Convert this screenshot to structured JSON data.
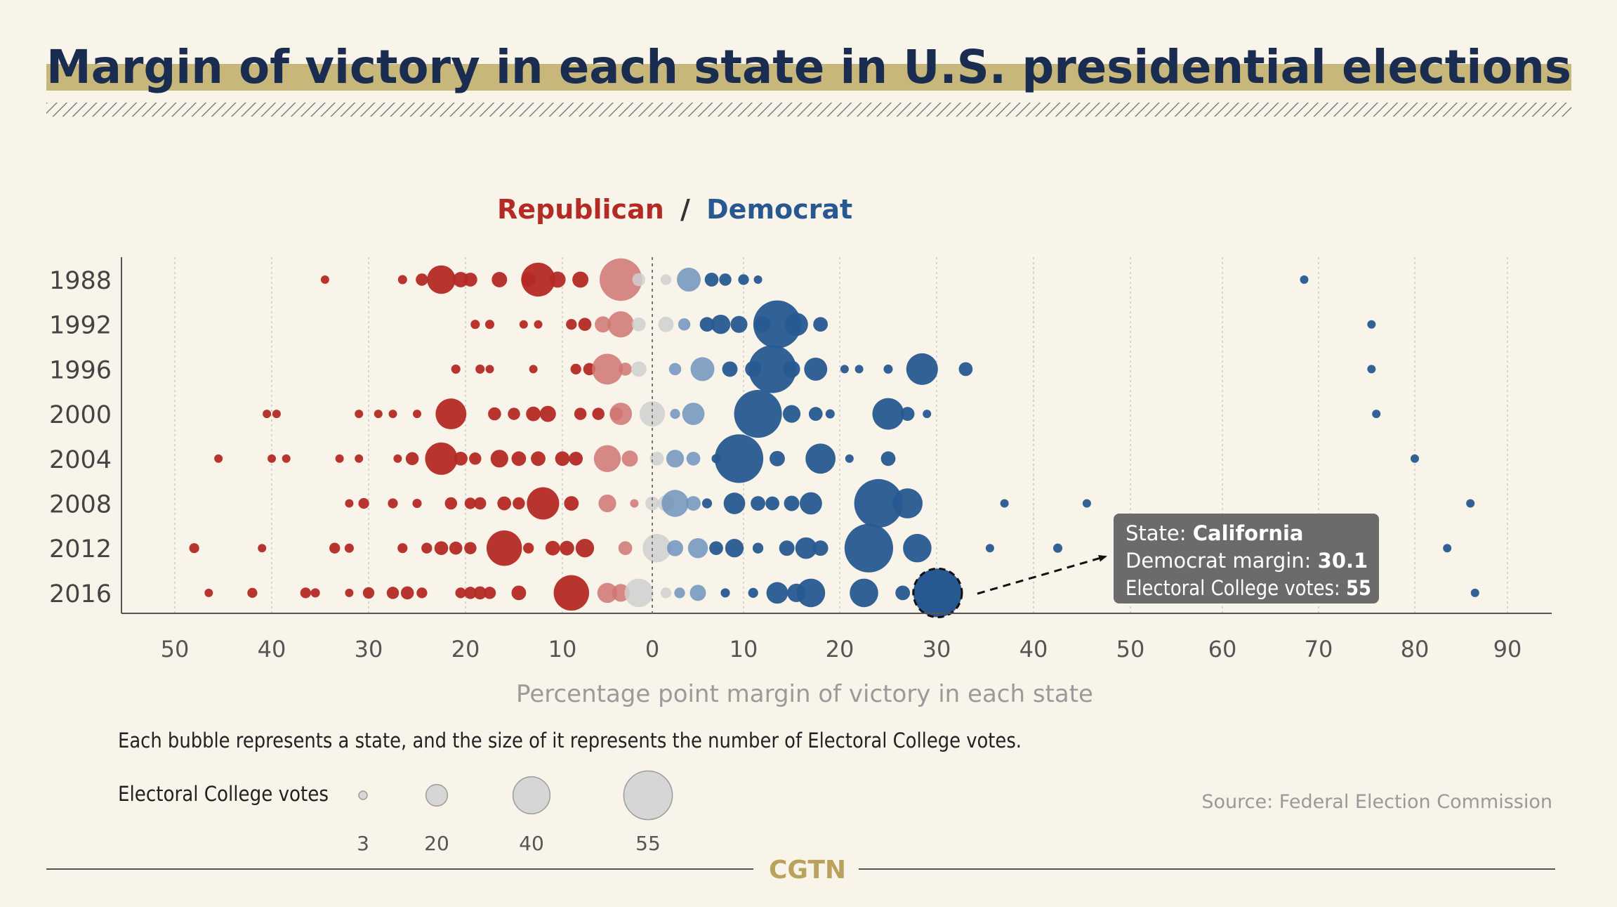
{
  "header": {
    "title": "Margin of victory in each state in U.S. presidential elections"
  },
  "legend_top": {
    "republican": "Republican",
    "separator": "/",
    "democrat": "Democrat"
  },
  "tooltip": {
    "state_label": "State: ",
    "state_value": "California",
    "margin_label": "Democrat margin: ",
    "margin_value": "30.1",
    "votes_label": "Electoral College votes: ",
    "votes_value": "55"
  },
  "note": "Each bubble represents a state, and the size of it represents the number of Electoral College votes.",
  "size_legend": {
    "title": "Electoral College votes",
    "items": [
      {
        "label": "3",
        "value": 3
      },
      {
        "label": "20",
        "value": 20
      },
      {
        "label": "40",
        "value": 40
      },
      {
        "label": "55",
        "value": 55
      }
    ]
  },
  "source": "Source: Federal Election Commission",
  "brand": "CGTN",
  "colors": {
    "background": "#f8f4ea",
    "title": "#1a2d50",
    "title_highlight": "#c8b77a",
    "republican": "#b42a25",
    "democrat": "#275891",
    "neutral": "#cfcfcf",
    "tooltip_bg": "#6b6b6b",
    "axis": "#666666",
    "brand": "#b9a25e"
  },
  "chart_data": {
    "type": "scatter",
    "xlabel": "Percentage point margin of victory in each state",
    "xlim": [
      -55,
      95
    ],
    "x_ticks": [
      {
        "value": -50,
        "label": "50"
      },
      {
        "value": -40,
        "label": "40"
      },
      {
        "value": -30,
        "label": "30"
      },
      {
        "value": -20,
        "label": "20"
      },
      {
        "value": -10,
        "label": "10"
      },
      {
        "value": 0,
        "label": "0"
      },
      {
        "value": 10,
        "label": "10"
      },
      {
        "value": 20,
        "label": "20"
      },
      {
        "value": 30,
        "label": "30"
      },
      {
        "value": 40,
        "label": "40"
      },
      {
        "value": 50,
        "label": "50"
      },
      {
        "value": 60,
        "label": "60"
      },
      {
        "value": 70,
        "label": "70"
      },
      {
        "value": 80,
        "label": "80"
      },
      {
        "value": 90,
        "label": "90"
      }
    ],
    "highlight": {
      "year": "2016",
      "margin": 30.1,
      "votes": 55
    },
    "years": [
      {
        "year": "1988",
        "states": [
          {
            "m": -34.5,
            "v": 3
          },
          {
            "m": -26.5,
            "v": 4
          },
          {
            "m": -24.5,
            "v": 8
          },
          {
            "m": -22.5,
            "v": 29
          },
          {
            "m": -20.5,
            "v": 12
          },
          {
            "m": -19.5,
            "v": 10
          },
          {
            "m": -16.5,
            "v": 12
          },
          {
            "m": -13.5,
            "v": 11
          },
          {
            "m": -12.5,
            "v": 36
          },
          {
            "m": -10.5,
            "v": 13
          },
          {
            "m": -8,
            "v": 13
          },
          {
            "m": -3.5,
            "v": 47
          },
          {
            "m": -1.5,
            "v": 9
          },
          {
            "m": 1.5,
            "v": 6
          },
          {
            "m": 4,
            "v": 23
          },
          {
            "m": 6.5,
            "v": 10
          },
          {
            "m": 8,
            "v": 8
          },
          {
            "m": 10,
            "v": 6
          },
          {
            "m": 11.5,
            "v": 3
          },
          {
            "m": 68.5,
            "v": 3
          }
        ]
      },
      {
        "year": "1992",
        "states": [
          {
            "m": -19,
            "v": 4
          },
          {
            "m": -17.5,
            "v": 4
          },
          {
            "m": -14,
            "v": 3
          },
          {
            "m": -12.5,
            "v": 3
          },
          {
            "m": -9,
            "v": 6
          },
          {
            "m": -7.5,
            "v": 9
          },
          {
            "m": -5.5,
            "v": 13
          },
          {
            "m": -3.5,
            "v": 26
          },
          {
            "m": -1.5,
            "v": 10
          },
          {
            "m": 1.5,
            "v": 12
          },
          {
            "m": 3.5,
            "v": 8
          },
          {
            "m": 6,
            "v": 11
          },
          {
            "m": 7.5,
            "v": 17
          },
          {
            "m": 9.5,
            "v": 14
          },
          {
            "m": 12,
            "v": 13
          },
          {
            "m": 13.5,
            "v": 54
          },
          {
            "m": 15.5,
            "v": 22
          },
          {
            "m": 18,
            "v": 11
          },
          {
            "m": 75.5,
            "v": 3
          }
        ]
      },
      {
        "year": "1996",
        "states": [
          {
            "m": -21,
            "v": 4
          },
          {
            "m": -18.5,
            "v": 4
          },
          {
            "m": -17.5,
            "v": 3
          },
          {
            "m": -13,
            "v": 3
          },
          {
            "m": -8.5,
            "v": 6
          },
          {
            "m": -7,
            "v": 8
          },
          {
            "m": -5,
            "v": 32
          },
          {
            "m": -3,
            "v": 9
          },
          {
            "m": -1.5,
            "v": 12
          },
          {
            "m": 2.5,
            "v": 8
          },
          {
            "m": 5.5,
            "v": 23
          },
          {
            "m": 8.5,
            "v": 12
          },
          {
            "m": 11,
            "v": 13
          },
          {
            "m": 13,
            "v": 54
          },
          {
            "m": 15,
            "v": 14
          },
          {
            "m": 17.5,
            "v": 22
          },
          {
            "m": 20.5,
            "v": 3
          },
          {
            "m": 22,
            "v": 3
          },
          {
            "m": 25,
            "v": 4
          },
          {
            "m": 28.5,
            "v": 33
          },
          {
            "m": 33,
            "v": 10
          },
          {
            "m": 75.5,
            "v": 3
          }
        ]
      },
      {
        "year": "2000",
        "states": [
          {
            "m": -40.5,
            "v": 3
          },
          {
            "m": -39.5,
            "v": 3
          },
          {
            "m": -31,
            "v": 3
          },
          {
            "m": -29,
            "v": 3
          },
          {
            "m": -27.5,
            "v": 3
          },
          {
            "m": -25,
            "v": 3
          },
          {
            "m": -21.5,
            "v": 32
          },
          {
            "m": -17,
            "v": 9
          },
          {
            "m": -15,
            "v": 8
          },
          {
            "m": -13,
            "v": 11
          },
          {
            "m": -11.5,
            "v": 13
          },
          {
            "m": -8,
            "v": 8
          },
          {
            "m": -6,
            "v": 8
          },
          {
            "m": -4,
            "v": 9
          },
          {
            "m": -3.5,
            "v": 21
          },
          {
            "m": 0,
            "v": 25
          },
          {
            "m": 2.5,
            "v": 5
          },
          {
            "m": 4.5,
            "v": 21
          },
          {
            "m": 11.5,
            "v": 54
          },
          {
            "m": 15,
            "v": 15
          },
          {
            "m": 17.5,
            "v": 10
          },
          {
            "m": 19,
            "v": 4
          },
          {
            "m": 25,
            "v": 33
          },
          {
            "m": 27,
            "v": 10
          },
          {
            "m": 29,
            "v": 3
          },
          {
            "m": 76,
            "v": 3
          }
        ]
      },
      {
        "year": "2004",
        "states": [
          {
            "m": -45.5,
            "v": 3
          },
          {
            "m": -40,
            "v": 3
          },
          {
            "m": -38.5,
            "v": 3
          },
          {
            "m": -33,
            "v": 3
          },
          {
            "m": -31,
            "v": 3
          },
          {
            "m": -27,
            "v": 3
          },
          {
            "m": -25.5,
            "v": 9
          },
          {
            "m": -22.5,
            "v": 34
          },
          {
            "m": -20.5,
            "v": 10
          },
          {
            "m": -19,
            "v": 8
          },
          {
            "m": -16.5,
            "v": 15
          },
          {
            "m": -14.5,
            "v": 11
          },
          {
            "m": -12.5,
            "v": 11
          },
          {
            "m": -10,
            "v": 11
          },
          {
            "m": -8.5,
            "v": 10
          },
          {
            "m": -5,
            "v": 27
          },
          {
            "m": -2.5,
            "v": 13
          },
          {
            "m": 0.5,
            "v": 10
          },
          {
            "m": 2.5,
            "v": 15
          },
          {
            "m": 4.5,
            "v": 10
          },
          {
            "m": 7,
            "v": 4
          },
          {
            "m": 9.5,
            "v": 55
          },
          {
            "m": 13.5,
            "v": 12
          },
          {
            "m": 18,
            "v": 31
          },
          {
            "m": 21,
            "v": 3
          },
          {
            "m": 25,
            "v": 11
          },
          {
            "m": 80,
            "v": 3
          }
        ]
      },
      {
        "year": "2008",
        "states": [
          {
            "m": -32,
            "v": 3
          },
          {
            "m": -30.5,
            "v": 6
          },
          {
            "m": -27.5,
            "v": 5
          },
          {
            "m": -25,
            "v": 4
          },
          {
            "m": -21.5,
            "v": 8
          },
          {
            "m": -19.5,
            "v": 7
          },
          {
            "m": -18.5,
            "v": 8
          },
          {
            "m": -16,
            "v": 10
          },
          {
            "m": -14.5,
            "v": 8
          },
          {
            "m": -12,
            "v": 34
          },
          {
            "m": -9,
            "v": 11
          },
          {
            "m": -5,
            "v": 15
          },
          {
            "m": -2,
            "v": 3
          },
          {
            "m": 0,
            "v": 10
          },
          {
            "m": 1.5,
            "v": 13
          },
          {
            "m": 2.5,
            "v": 27
          },
          {
            "m": 4.5,
            "v": 11
          },
          {
            "m": 6,
            "v": 5
          },
          {
            "m": 9,
            "v": 20
          },
          {
            "m": 11.5,
            "v": 11
          },
          {
            "m": 13,
            "v": 10
          },
          {
            "m": 15,
            "v": 12
          },
          {
            "m": 17,
            "v": 21
          },
          {
            "m": 24,
            "v": 55
          },
          {
            "m": 27,
            "v": 31
          },
          {
            "m": 37,
            "v": 3
          },
          {
            "m": 45.5,
            "v": 3
          },
          {
            "m": 86,
            "v": 3
          }
        ]
      },
      {
        "year": "2012",
        "states": [
          {
            "m": -48,
            "v": 5
          },
          {
            "m": -41,
            "v": 3
          },
          {
            "m": -33.5,
            "v": 6
          },
          {
            "m": -32,
            "v": 4
          },
          {
            "m": -26.5,
            "v": 5
          },
          {
            "m": -24,
            "v": 6
          },
          {
            "m": -22.5,
            "v": 10
          },
          {
            "m": -21,
            "v": 9
          },
          {
            "m": -19.5,
            "v": 8
          },
          {
            "m": -16,
            "v": 38
          },
          {
            "m": -13.5,
            "v": 6
          },
          {
            "m": -11,
            "v": 11
          },
          {
            "m": -9.5,
            "v": 11
          },
          {
            "m": -7.5,
            "v": 16
          },
          {
            "m": -3,
            "v": 10
          },
          {
            "m": 0.5,
            "v": 29
          },
          {
            "m": 2.5,
            "v": 13
          },
          {
            "m": 5,
            "v": 18
          },
          {
            "m": 7,
            "v": 10
          },
          {
            "m": 9,
            "v": 16
          },
          {
            "m": 11.5,
            "v": 6
          },
          {
            "m": 14.5,
            "v": 12
          },
          {
            "m": 16.5,
            "v": 20
          },
          {
            "m": 18,
            "v": 12
          },
          {
            "m": 23,
            "v": 55
          },
          {
            "m": 28,
            "v": 29
          },
          {
            "m": 35.5,
            "v": 3
          },
          {
            "m": 42.5,
            "v": 4
          },
          {
            "m": 83.5,
            "v": 3
          }
        ]
      },
      {
        "year": "2016",
        "states": [
          {
            "m": -46.5,
            "v": 3
          },
          {
            "m": -42,
            "v": 5
          },
          {
            "m": -36.5,
            "v": 6
          },
          {
            "m": -35.5,
            "v": 4
          },
          {
            "m": -32,
            "v": 3
          },
          {
            "m": -30,
            "v": 7
          },
          {
            "m": -27.5,
            "v": 8
          },
          {
            "m": -26,
            "v": 9
          },
          {
            "m": -24.5,
            "v": 6
          },
          {
            "m": -20.5,
            "v": 6
          },
          {
            "m": -19.5,
            "v": 8
          },
          {
            "m": -18.5,
            "v": 9
          },
          {
            "m": -17.5,
            "v": 8
          },
          {
            "m": -14.5,
            "v": 11
          },
          {
            "m": -9,
            "v": 38
          },
          {
            "m": -5,
            "v": 18
          },
          {
            "m": -3.5,
            "v": 15
          },
          {
            "m": -1.5,
            "v": 29
          },
          {
            "m": 1.5,
            "v": 6
          },
          {
            "m": 3,
            "v": 6
          },
          {
            "m": 5,
            "v": 13
          },
          {
            "m": 8,
            "v": 4
          },
          {
            "m": 11,
            "v": 5
          },
          {
            "m": 13.5,
            "v": 20
          },
          {
            "m": 15.5,
            "v": 16
          },
          {
            "m": 17,
            "v": 29
          },
          {
            "m": 22.5,
            "v": 29
          },
          {
            "m": 26.5,
            "v": 11
          },
          {
            "m": 30.1,
            "v": 55
          },
          {
            "m": 86.5,
            "v": 3
          }
        ]
      }
    ]
  }
}
